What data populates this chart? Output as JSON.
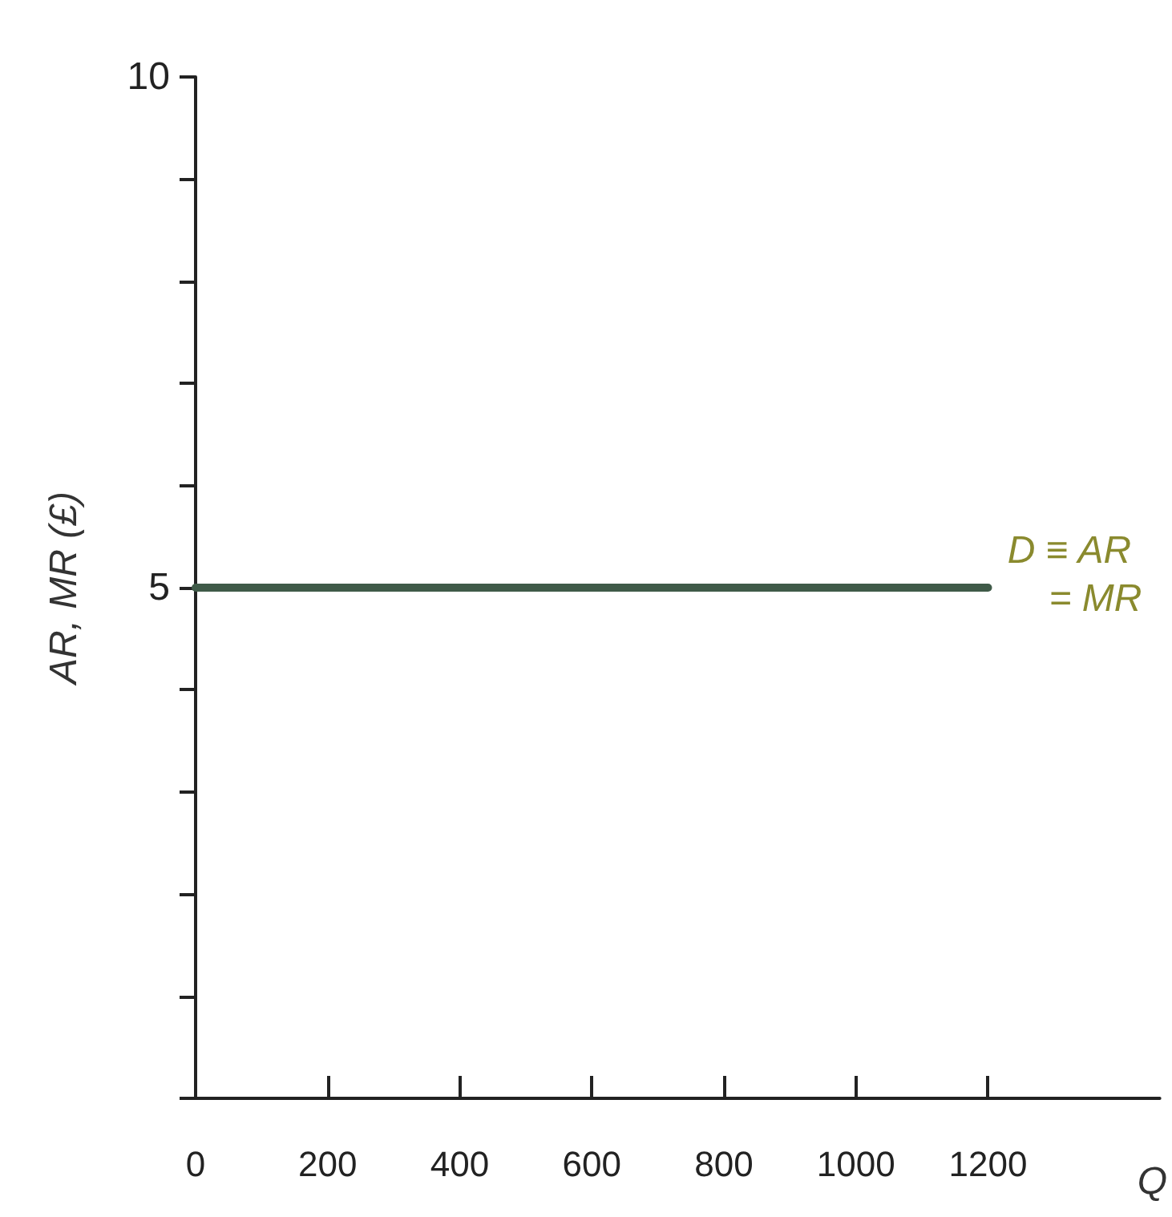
{
  "chart_data": {
    "type": "line",
    "xlabel": "Q",
    "ylabel": "AR, MR (£)",
    "x": [
      0,
      1200
    ],
    "series": [
      {
        "name": "D ≡ AR = MR",
        "color": "#3f5a48",
        "values": [
          5,
          5
        ]
      }
    ],
    "xlim": [
      0,
      1460
    ],
    "xticks": [
      0,
      200,
      400,
      600,
      800,
      1000,
      1200
    ],
    "ylim": [
      0,
      10
    ],
    "yticks": [
      {
        "value": 0,
        "label": null
      },
      {
        "value": 1,
        "label": null
      },
      {
        "value": 2,
        "label": null
      },
      {
        "value": 3,
        "label": null
      },
      {
        "value": 4,
        "label": null
      },
      5,
      {
        "value": 6,
        "label": null
      },
      {
        "value": 7,
        "label": null
      },
      {
        "value": 8,
        "label": null
      },
      {
        "value": 9,
        "label": null
      },
      10
    ],
    "grid": false,
    "legend": false,
    "marker": "none",
    "line_style": "solid"
  }
}
